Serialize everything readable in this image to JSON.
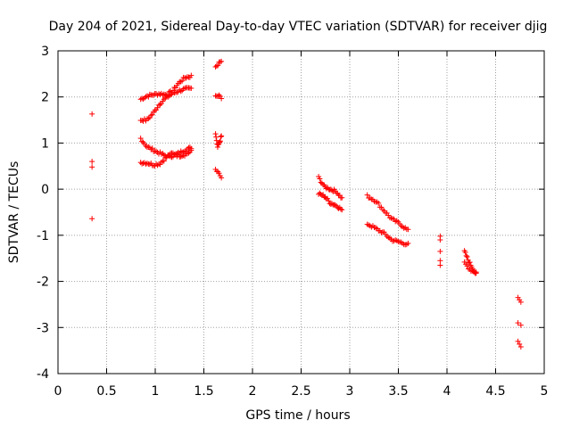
{
  "chart_data": {
    "type": "scatter",
    "title": "Day 204 of 2021, Sidereal Day-to-day VTEC variation (SDTVAR) for receiver djig",
    "xlabel": "GPS time / hours",
    "ylabel": "SDTVAR / TECUs",
    "xlim": [
      0,
      5
    ],
    "ylim": [
      -4,
      3
    ],
    "xticks": [
      "0",
      "0.5",
      "1",
      "1.5",
      "2",
      "2.5",
      "3",
      "3.5",
      "4",
      "4.5",
      "5"
    ],
    "yticks": [
      "-4",
      "-3",
      "-2",
      "-1",
      "0",
      "1",
      "2",
      "3"
    ],
    "grid": true,
    "marker": "+",
    "color": "#ff0000",
    "segments": [
      {
        "x0": 0.35,
        "x1": 0.35,
        "y": [
          1.63
        ],
        "n": 1
      },
      {
        "x0": 0.35,
        "x1": 0.35,
        "y": [
          0.6,
          0.48
        ],
        "n": 2
      },
      {
        "x0": 0.35,
        "x1": 0.35,
        "y": [
          -0.64
        ],
        "n": 1
      },
      {
        "x0": 0.85,
        "x1": 1.37,
        "y": [
          1.95,
          2.02,
          2.05,
          2.07,
          2.05,
          2.12,
          2.3,
          2.42,
          2.45
        ],
        "n": 40
      },
      {
        "x0": 0.85,
        "x1": 1.37,
        "y": [
          1.5,
          1.5,
          1.65,
          1.85,
          1.98,
          2.07,
          2.13,
          2.17,
          2.18
        ],
        "n": 40
      },
      {
        "x0": 0.85,
        "x1": 1.37,
        "y": [
          1.1,
          0.92,
          0.85,
          0.78,
          0.72,
          0.72,
          0.78,
          0.85,
          0.9
        ],
        "n": 40
      },
      {
        "x0": 0.85,
        "x1": 1.37,
        "y": [
          0.58,
          0.57,
          0.53,
          0.55,
          0.68,
          0.78,
          0.72,
          0.75,
          0.82
        ],
        "n": 40
      },
      {
        "x0": 1.62,
        "x1": 1.68,
        "y": [
          2.65,
          2.72,
          2.77
        ],
        "n": 6
      },
      {
        "x0": 1.62,
        "x1": 1.68,
        "y": [
          2.0,
          2.02,
          1.97
        ],
        "n": 6
      },
      {
        "x0": 1.62,
        "x1": 1.68,
        "y": [
          1.2,
          0.9,
          1.0,
          1.15
        ],
        "n": 12
      },
      {
        "x0": 1.62,
        "x1": 1.68,
        "y": [
          0.42,
          0.35,
          0.25
        ],
        "n": 6
      },
      {
        "x0": 2.68,
        "x1": 2.92,
        "y": [
          0.25,
          0.05,
          0.0,
          -0.05,
          -0.2
        ],
        "n": 22
      },
      {
        "x0": 2.68,
        "x1": 2.92,
        "y": [
          -0.1,
          -0.15,
          -0.3,
          -0.35,
          -0.45
        ],
        "n": 22
      },
      {
        "x0": 3.18,
        "x1": 3.6,
        "y": [
          -0.15,
          -0.25,
          -0.45,
          -0.65,
          -0.75,
          -0.9
        ],
        "n": 30
      },
      {
        "x0": 3.18,
        "x1": 3.6,
        "y": [
          -0.75,
          -0.85,
          -0.95,
          -1.1,
          -1.15,
          -1.2
        ],
        "n": 30
      },
      {
        "x0": 3.93,
        "x1": 3.93,
        "y": [
          -1.02,
          -1.1
        ],
        "n": 2
      },
      {
        "x0": 3.93,
        "x1": 3.93,
        "y": [
          -1.35
        ],
        "n": 1
      },
      {
        "x0": 3.93,
        "x1": 3.93,
        "y": [
          -1.55,
          -1.65
        ],
        "n": 2
      },
      {
        "x0": 4.18,
        "x1": 4.3,
        "y": [
          -1.35,
          -1.55,
          -1.7,
          -1.85
        ],
        "n": 14
      },
      {
        "x0": 4.18,
        "x1": 4.3,
        "y": [
          -1.6,
          -1.75,
          -1.8
        ],
        "n": 10
      },
      {
        "x0": 4.73,
        "x1": 4.76,
        "y": [
          -2.35,
          -2.45
        ],
        "n": 3
      },
      {
        "x0": 4.73,
        "x1": 4.76,
        "y": [
          -2.9,
          -2.95
        ],
        "n": 2
      },
      {
        "x0": 4.73,
        "x1": 4.76,
        "y": [
          -3.3,
          -3.42
        ],
        "n": 3
      }
    ]
  }
}
